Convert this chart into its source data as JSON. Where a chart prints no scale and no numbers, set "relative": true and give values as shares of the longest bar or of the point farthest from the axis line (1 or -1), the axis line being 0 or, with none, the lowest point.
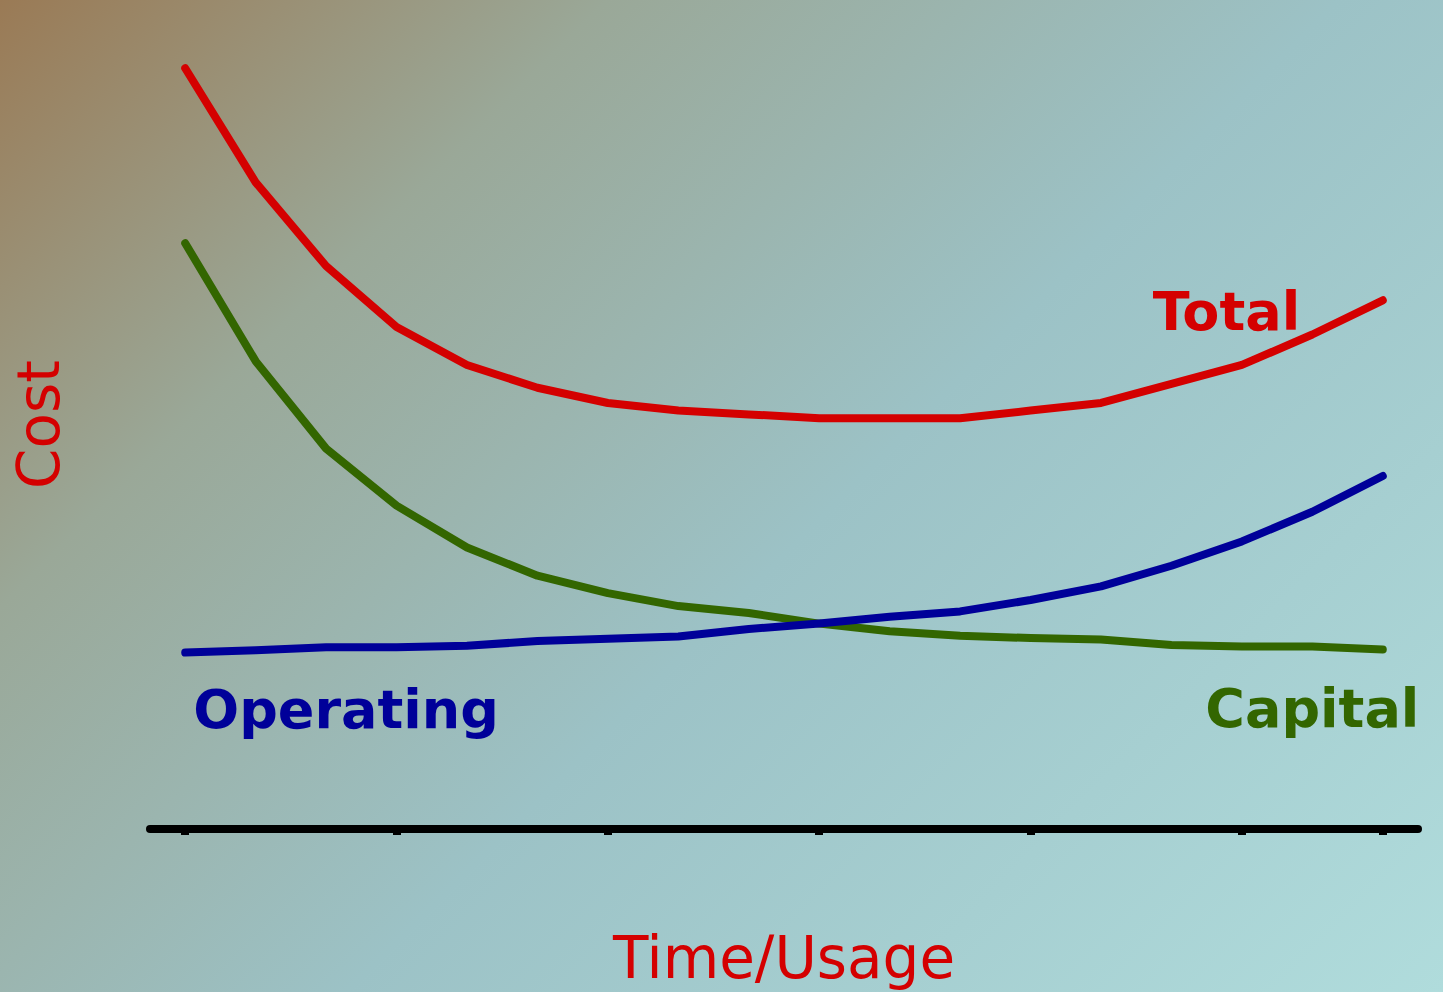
{
  "chart_data": {
    "type": "line",
    "relative": true,
    "xlabel": "Time/Usage",
    "ylabel": "Cost",
    "categories": [
      null,
      null,
      null,
      null,
      null,
      null,
      null,
      null,
      null,
      null,
      null,
      null,
      null,
      null,
      null,
      null,
      null,
      null
    ],
    "series": [
      {
        "name": "Total",
        "color": "#d40000",
        "values": [
          1,
          0.85,
          0.74,
          0.66,
          0.61,
          0.58,
          0.56,
          0.55,
          0.545,
          0.54,
          0.54,
          0.54,
          0.55,
          0.56,
          0.585,
          0.61,
          0.65,
          0.695
        ]
      },
      {
        "name": "Capital",
        "color": "#336600",
        "values": [
          0.77,
          0.615,
          0.5,
          0.425,
          0.37,
          0.333,
          0.31,
          0.293,
          0.284,
          0.27,
          0.26,
          0.254,
          0.251,
          0.249,
          0.242,
          0.24,
          0.24,
          0.236
        ]
      },
      {
        "name": "Operating",
        "color": "#000099",
        "values": [
          0.232,
          0.235,
          0.239,
          0.239,
          0.241,
          0.247,
          0.25,
          0.253,
          0.263,
          0.27,
          0.279,
          0.286,
          0.301,
          0.319,
          0.346,
          0.378,
          0.417,
          0.464
        ]
      }
    ],
    "grid": false,
    "legend": false,
    "marker": "none",
    "line_style": "solid"
  }
}
